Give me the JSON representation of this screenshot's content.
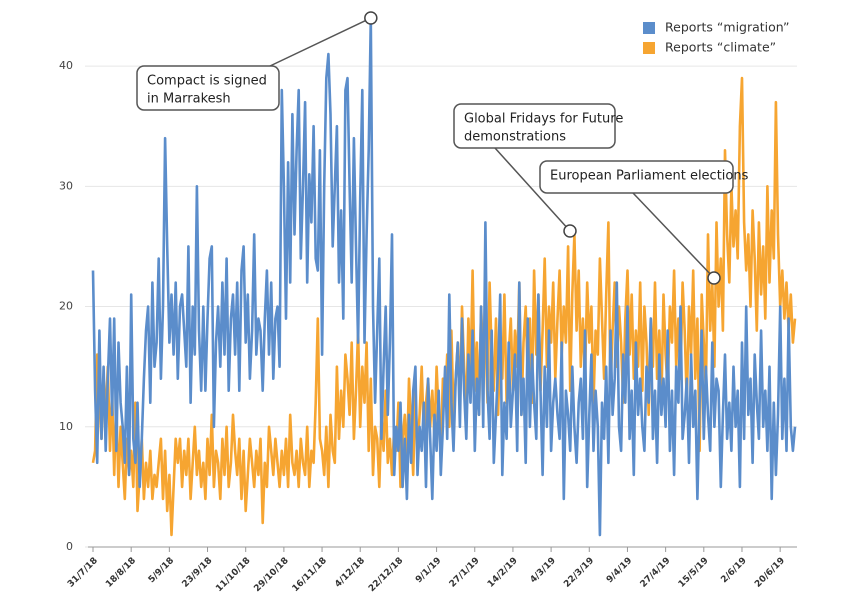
{
  "chart_data": {
    "type": "line",
    "categories": [
      "31/7/18",
      null,
      null,
      null,
      null,
      null,
      null,
      null,
      null,
      null,
      null,
      null,
      null,
      null,
      null,
      null,
      null,
      null,
      "18/8/18",
      null,
      null,
      null,
      null,
      null,
      null,
      null,
      null,
      null,
      null,
      null,
      null,
      null,
      null,
      null,
      null,
      null,
      "5/9/18",
      null,
      null,
      null,
      null,
      null,
      null,
      null,
      null,
      null,
      null,
      null,
      null,
      null,
      null,
      null,
      null,
      null,
      "23/9/18",
      null,
      null,
      null,
      null,
      null,
      null,
      null,
      null,
      null,
      null,
      null,
      null,
      null,
      null,
      null,
      null,
      null,
      "11/10/18",
      null,
      null,
      null,
      null,
      null,
      null,
      null,
      null,
      null,
      null,
      null,
      null,
      null,
      null,
      null,
      null,
      null,
      "29/10/18",
      null,
      null,
      null,
      null,
      null,
      null,
      null,
      null,
      null,
      null,
      null,
      null,
      null,
      null,
      null,
      null,
      null,
      "16/11/18",
      null,
      null,
      null,
      null,
      null,
      null,
      null,
      null,
      null,
      null,
      null,
      null,
      null,
      null,
      null,
      null,
      null,
      "4/12/18",
      null,
      null,
      null,
      null,
      null,
      null,
      null,
      null,
      null,
      null,
      null,
      null,
      null,
      null,
      null,
      null,
      null,
      "22/12/18",
      null,
      null,
      null,
      null,
      null,
      null,
      null,
      null,
      null,
      null,
      null,
      null,
      null,
      null,
      null,
      null,
      null,
      "9/1/19",
      null,
      null,
      null,
      null,
      null,
      null,
      null,
      null,
      null,
      null,
      null,
      null,
      null,
      null,
      null,
      null,
      null,
      "27/1/19",
      null,
      null,
      null,
      null,
      null,
      null,
      null,
      null,
      null,
      null,
      null,
      null,
      null,
      null,
      null,
      null,
      null,
      "14/2/19",
      null,
      null,
      null,
      null,
      null,
      null,
      null,
      null,
      null,
      null,
      null,
      null,
      null,
      null,
      null,
      null,
      null,
      "4/3/19",
      null,
      null,
      null,
      null,
      null,
      null,
      null,
      null,
      null,
      null,
      null,
      null,
      null,
      null,
      null,
      null,
      null,
      "22/3/19",
      null,
      null,
      null,
      null,
      null,
      null,
      null,
      null,
      null,
      null,
      null,
      null,
      null,
      null,
      null,
      null,
      null,
      "9/4/19",
      null,
      null,
      null,
      null,
      null,
      null,
      null,
      null,
      null,
      null,
      null,
      null,
      null,
      null,
      null,
      null,
      null,
      "27/4/19",
      null,
      null,
      null,
      null,
      null,
      null,
      null,
      null,
      null,
      null,
      null,
      null,
      null,
      null,
      null,
      null,
      null,
      "15/5/19",
      null,
      null,
      null,
      null,
      null,
      null,
      null,
      null,
      null,
      null,
      null,
      null,
      null,
      null,
      null,
      null,
      null,
      "2/6/19",
      null,
      null,
      null,
      null,
      null,
      null,
      null,
      null,
      null,
      null,
      null,
      null,
      null,
      null,
      null,
      null,
      null,
      "20/6/19",
      null,
      null,
      null,
      null,
      null,
      null,
      null
    ],
    "series": [
      {
        "name": "Reports “migration”",
        "color": "#5b8dcb",
        "values": [
          23,
          13,
          7,
          18,
          9,
          15,
          8,
          14,
          19,
          11,
          19,
          8,
          17,
          12,
          10,
          7,
          15,
          6,
          21,
          9,
          7,
          12,
          5,
          9,
          14,
          18,
          20,
          12,
          22,
          15,
          17,
          24,
          14,
          20,
          34,
          25,
          17,
          21,
          16,
          22,
          14,
          20,
          21,
          18,
          15,
          25,
          12,
          20,
          16,
          30,
          18,
          13,
          20,
          13,
          19,
          24,
          25,
          10,
          17,
          20,
          15,
          22,
          16,
          24,
          13,
          19,
          21,
          16,
          22,
          13,
          23,
          25,
          17,
          21,
          14,
          18,
          26,
          16,
          19,
          18,
          13,
          19,
          23,
          16,
          22,
          14,
          19,
          20,
          15,
          38,
          30,
          19,
          32,
          22,
          36,
          26,
          33,
          38,
          24,
          30,
          37,
          22,
          31,
          27,
          35,
          24,
          23,
          33,
          16,
          30,
          39,
          41,
          36,
          25,
          30,
          35,
          22,
          28,
          19,
          38,
          39,
          30,
          22,
          34,
          25,
          17,
          29,
          38,
          17,
          26,
          33,
          44,
          20,
          12,
          18,
          24,
          9,
          15,
          20,
          11,
          17,
          26,
          6,
          10,
          8,
          12,
          5,
          9,
          4,
          11,
          7,
          13,
          15,
          6,
          10,
          8,
          12,
          5,
          14,
          9,
          4,
          11,
          8,
          13,
          6,
          10,
          15,
          9,
          21,
          12,
          8,
          14,
          17,
          10,
          19,
          13,
          9,
          16,
          12,
          18,
          8,
          14,
          11,
          20,
          10,
          27,
          13,
          9,
          18,
          7,
          11,
          15,
          21,
          6,
          12,
          9,
          17,
          10,
          13,
          16,
          8,
          22,
          11,
          14,
          7,
          19,
          10,
          16,
          12,
          9,
          21,
          13,
          6,
          15,
          10,
          18,
          8,
          12,
          14,
          11,
          9,
          17,
          4,
          13,
          11,
          8,
          15,
          10,
          7,
          12,
          14,
          9,
          18,
          5,
          11,
          16,
          8,
          13,
          10,
          1,
          12,
          9,
          15,
          7,
          18,
          11,
          14,
          22,
          10,
          8,
          16,
          12,
          20,
          9,
          13,
          6,
          17,
          11,
          14,
          10,
          8,
          15,
          12,
          19,
          9,
          13,
          7,
          16,
          11,
          14,
          10,
          18,
          8,
          13,
          6,
          15,
          12,
          20,
          9,
          11,
          14,
          7,
          16,
          10,
          13,
          4,
          12,
          18,
          9,
          15,
          11,
          8,
          17,
          10,
          14,
          13,
          5,
          11,
          16,
          9,
          12,
          8,
          15,
          10,
          13,
          5,
          17,
          9,
          20,
          11,
          14,
          7,
          16,
          12,
          9,
          18,
          10,
          13,
          8,
          15,
          4,
          12,
          6,
          11,
          20,
          9,
          14,
          8,
          19,
          10,
          8,
          10
        ]
      },
      {
        "name": "Reports “climate”",
        "color": "#f6a531",
        "values": [
          7,
          8,
          16,
          12,
          9,
          14,
          11,
          15,
          8,
          13,
          6,
          12,
          5,
          10,
          7,
          4,
          9,
          6,
          8,
          5,
          12,
          3,
          6,
          9,
          4,
          7,
          5,
          8,
          4,
          6,
          5,
          7,
          9,
          4,
          8,
          3,
          6,
          1,
          5,
          9,
          7,
          9,
          5,
          8,
          6,
          9,
          4,
          7,
          10,
          6,
          8,
          5,
          7,
          4,
          9,
          6,
          11,
          5,
          8,
          7,
          4,
          9,
          6,
          10,
          5,
          7,
          11,
          8,
          6,
          9,
          4,
          8,
          3,
          6,
          9,
          7,
          5,
          8,
          6,
          9,
          2,
          7,
          5,
          10,
          8,
          6,
          9,
          7,
          5,
          8,
          6,
          9,
          5,
          11,
          7,
          6,
          8,
          5,
          9,
          7,
          6,
          10,
          5,
          8,
          7,
          12,
          19,
          9,
          8,
          6,
          10,
          5,
          11,
          8,
          7,
          15,
          9,
          13,
          10,
          16,
          14,
          11,
          17,
          9,
          13,
          18,
          10,
          15,
          12,
          17,
          8,
          14,
          6,
          10,
          9,
          5,
          11,
          8,
          13,
          7,
          9,
          6,
          10,
          8,
          12,
          5,
          9,
          11,
          7,
          14,
          10,
          6,
          13,
          8,
          11,
          15,
          9,
          12,
          14,
          10,
          13,
          9,
          15,
          11,
          8,
          14,
          12,
          16,
          10,
          18,
          11,
          14,
          17,
          12,
          20,
          15,
          11,
          19,
          14,
          23,
          13,
          17,
          11,
          20,
          15,
          18,
          12,
          22,
          16,
          13,
          19,
          11,
          17,
          14,
          21,
          12,
          16,
          19,
          13,
          18,
          15,
          22,
          11,
          17,
          20,
          14,
          19,
          12,
          23,
          16,
          21,
          13,
          18,
          24,
          15,
          20,
          17,
          22,
          14,
          19,
          23,
          16,
          20,
          17,
          25,
          13,
          21,
          26,
          18,
          23,
          15,
          19,
          14,
          22,
          17,
          20,
          12,
          18,
          16,
          24,
          19,
          14,
          21,
          27,
          13,
          18,
          22,
          15,
          20,
          17,
          12,
          19,
          23,
          16,
          21,
          14,
          18,
          15,
          22,
          13,
          20,
          17,
          11,
          19,
          15,
          22,
          14,
          18,
          12,
          21,
          16,
          13,
          20,
          17,
          23,
          15,
          19,
          14,
          22,
          18,
          12,
          20,
          16,
          23,
          14,
          19,
          8,
          21,
          17,
          13,
          26,
          18,
          22,
          15,
          27,
          20,
          24,
          18,
          33,
          26,
          22,
          30,
          25,
          28,
          24,
          35,
          39,
          27,
          23,
          26,
          20,
          28,
          24,
          18,
          27,
          21,
          25,
          19,
          30,
          22,
          28,
          24,
          37,
          26,
          20,
          23,
          19,
          22,
          18,
          21,
          17,
          19
        ]
      }
    ],
    "ylim": [
      0,
      44.5
    ],
    "yticks": [
      0,
      10,
      20,
      30,
      40
    ],
    "grid": true,
    "legend": "top-right",
    "annotations": [
      {
        "text": [
          "Compact is signed",
          "in Marrakesh"
        ]
      },
      {
        "text": [
          "Global Fridays for Future",
          "demonstrations"
        ]
      },
      {
        "text": [
          "European Parliament elections"
        ]
      }
    ]
  }
}
